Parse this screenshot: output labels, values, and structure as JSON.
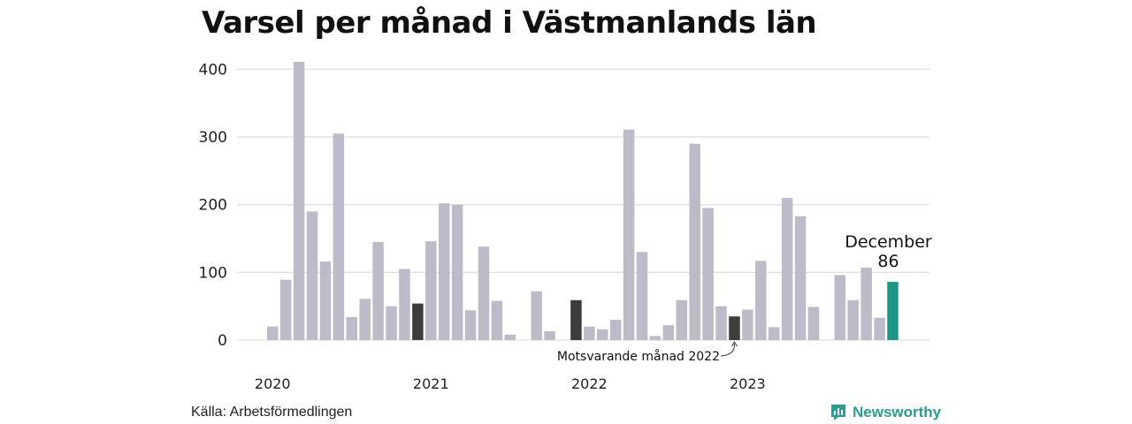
{
  "title": "Varsel per månad i Västmanlands län",
  "source": "Källa: Arbetsförmedlingen",
  "brand": {
    "name": "Newsworthy",
    "icon": "newsworthy-logo-icon"
  },
  "colors": {
    "bar": "#bdbbc8",
    "highlight": "#3d3d3d",
    "current": "#1a9a86",
    "grid": "#e2e2e2",
    "brand": "#2a9d8f"
  },
  "chart_data": {
    "type": "bar",
    "title": "Varsel per månad i Västmanlands län",
    "xlabel": "",
    "ylabel": "",
    "ylim": [
      0,
      420
    ],
    "yticks": [
      0,
      100,
      200,
      300,
      400
    ],
    "grid": true,
    "year_labels": [
      "2020",
      "2021",
      "2022",
      "2023"
    ],
    "categories": [
      "2020-01",
      "2020-02",
      "2020-03",
      "2020-04",
      "2020-05",
      "2020-06",
      "2020-07",
      "2020-08",
      "2020-09",
      "2020-10",
      "2020-11",
      "2020-12",
      "2021-01",
      "2021-02",
      "2021-03",
      "2021-04",
      "2021-05",
      "2021-06",
      "2021-07",
      "2021-08",
      "2021-09",
      "2021-10",
      "2021-11",
      "2021-12",
      "2022-01",
      "2022-02",
      "2022-03",
      "2022-04",
      "2022-05",
      "2022-06",
      "2022-07",
      "2022-08",
      "2022-09",
      "2022-10",
      "2022-11",
      "2022-12",
      "2023-01",
      "2023-02",
      "2023-03",
      "2023-04",
      "2023-05",
      "2023-06",
      "2023-07",
      "2023-08",
      "2023-09",
      "2023-10",
      "2023-11",
      "2023-12"
    ],
    "values": [
      20,
      89,
      411,
      190,
      116,
      305,
      34,
      61,
      145,
      50,
      105,
      54,
      146,
      202,
      200,
      44,
      138,
      58,
      8,
      0,
      72,
      13,
      0,
      59,
      20,
      16,
      30,
      311,
      130,
      6,
      22,
      59,
      290,
      195,
      50,
      35,
      45,
      117,
      19,
      210,
      183,
      49,
      0,
      96,
      59,
      107,
      33,
      86
    ],
    "highlight_indices": [
      11,
      23,
      35
    ],
    "current_index": 47,
    "annotations": [
      {
        "label": "December",
        "value_label": "86",
        "target": "2023-12"
      },
      {
        "label": "Motsvarande månad 2022",
        "target": "2022-12"
      }
    ]
  }
}
